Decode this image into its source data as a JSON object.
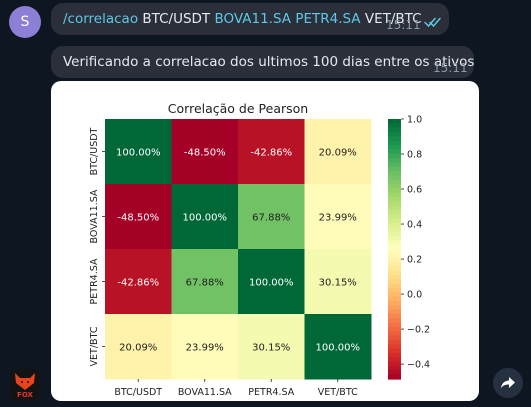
{
  "sender": {
    "avatar_letter": "S",
    "avatar_color": "#8e7fd6"
  },
  "messages": [
    {
      "parts": [
        {
          "text": "/correlacao",
          "link": true
        },
        {
          "text": " BTC/USDT ",
          "link": false
        },
        {
          "text": "BOVA11.SA",
          "link": true
        },
        {
          "text": " ",
          "link": false
        },
        {
          "text": "PETR4.SA",
          "link": true
        },
        {
          "text": " VET/BTC",
          "link": false
        }
      ],
      "time": "15:11",
      "status_icon": "double-check-icon"
    },
    {
      "text": "Verificando a correlacao dos ultimos 100 dias entre os ativos",
      "time": "15:11"
    }
  ],
  "bot_avatar": {
    "label": "FOX",
    "icon": "fox-icon"
  },
  "share_icon": "share-arrow-icon",
  "colors": {
    "background": "#0e1621",
    "bubble": "#2b2f3a",
    "link": "#5ec8e5",
    "time": "#8b98a8"
  },
  "chart_data": {
    "type": "heatmap",
    "title": "Correlação de Pearson",
    "rows": [
      "BTC/USDT",
      "BOVA11.SA",
      "PETR4.SA",
      "VET/BTC"
    ],
    "columns": [
      "BTC/USDT",
      "BOVA11.SA",
      "PETR4.SA",
      "VET/BTC"
    ],
    "values": [
      [
        1.0,
        -0.485,
        -0.4286,
        0.2009
      ],
      [
        -0.485,
        1.0,
        0.6788,
        0.2399
      ],
      [
        -0.4286,
        0.6788,
        1.0,
        0.3015
      ],
      [
        0.2009,
        0.2399,
        0.3015,
        1.0
      ]
    ],
    "cell_labels": [
      [
        "100.00%",
        "-48.50%",
        "-42.86%",
        "20.09%"
      ],
      [
        "-48.50%",
        "100.00%",
        "67.88%",
        "23.99%"
      ],
      [
        "-42.86%",
        "67.88%",
        "100.00%",
        "30.15%"
      ],
      [
        "20.09%",
        "23.99%",
        "30.15%",
        "100.00%"
      ]
    ],
    "colormap": "RdYlGn",
    "colorbar_range": [
      -0.485,
      1.0
    ],
    "colorbar_ticks": [
      1.0,
      0.8,
      0.6,
      0.4,
      0.2,
      0.0,
      -0.2,
      -0.4
    ],
    "colorbar_tick_labels": [
      "1.0",
      "0.8",
      "0.6",
      "0.4",
      "0.2",
      "0.0",
      "−0.2",
      "−0.4"
    ]
  }
}
